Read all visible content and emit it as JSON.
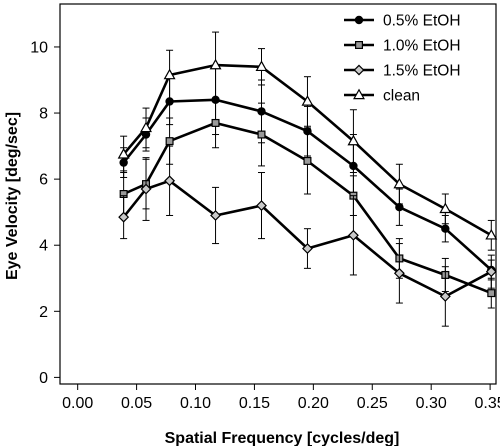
{
  "chart_data": {
    "type": "line",
    "xlabel": "Spatial Frequency [cycles/deg]",
    "ylabel": "Eye Velocity [deg/sec]",
    "xlim": [
      -0.015,
      0.355
    ],
    "ylim": [
      -0.2,
      11.3
    ],
    "xticks": [
      0.0,
      0.05,
      0.1,
      0.15,
      0.2,
      0.25,
      0.3,
      0.35
    ],
    "xtick_labels": [
      "0.00",
      "0.05",
      "0.10",
      "0.15",
      "0.20",
      "0.25",
      "0.30",
      "0.35"
    ],
    "yticks": [
      0,
      2,
      4,
      6,
      8,
      10
    ],
    "ytick_labels": [
      "0",
      "2",
      "4",
      "6",
      "8",
      "10"
    ],
    "x": [
      0.039,
      0.058,
      0.078,
      0.117,
      0.156,
      0.195,
      0.234,
      0.273,
      0.312,
      0.351
    ],
    "legend_position": "top-right",
    "series": [
      {
        "name": "0.5% EtOH",
        "marker": "circle",
        "marker_fill": "#000000",
        "values": [
          6.5,
          7.35,
          8.35,
          8.4,
          8.05,
          7.45,
          6.4,
          5.15,
          4.5,
          3.25
        ],
        "errors": [
          0.45,
          0.5,
          0.7,
          1.05,
          0.95,
          0.75,
          0.95,
          0.55,
          0.4,
          0.3
        ]
      },
      {
        "name": "1.0% EtOH",
        "marker": "square",
        "marker_fill": "#9a9a9a",
        "values": [
          5.55,
          5.85,
          7.15,
          7.7,
          7.35,
          6.55,
          5.5,
          3.6,
          3.1,
          2.55
        ],
        "errors": [
          0.7,
          0.75,
          0.7,
          0.75,
          0.95,
          1.0,
          0.6,
          0.6,
          0.5,
          0.45
        ]
      },
      {
        "name": "1.5% EtOH",
        "marker": "diamond",
        "marker_fill": "#c9c9c9",
        "values": [
          4.85,
          5.7,
          5.95,
          4.9,
          5.2,
          3.9,
          4.3,
          3.15,
          2.45,
          3.2
        ],
        "errors": [
          0.65,
          0.95,
          1.05,
          0.85,
          1.0,
          0.6,
          1.2,
          0.9,
          0.9,
          0.5
        ]
      },
      {
        "name": "clean",
        "marker": "triangle",
        "marker_fill": "#ffffff",
        "values": [
          6.75,
          7.55,
          9.15,
          9.45,
          9.4,
          8.35,
          7.15,
          5.85,
          5.1,
          4.3
        ],
        "errors": [
          0.55,
          0.6,
          0.75,
          1.0,
          0.55,
          0.75,
          0.95,
          0.6,
          0.45,
          0.45
        ]
      }
    ]
  }
}
